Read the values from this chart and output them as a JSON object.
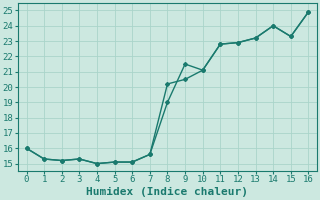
{
  "xlabel": "Humidex (Indice chaleur)",
  "ylabel": "",
  "xlim": [
    -0.5,
    16.5
  ],
  "ylim": [
    14.5,
    25.5
  ],
  "yticks": [
    15,
    16,
    17,
    18,
    19,
    20,
    21,
    22,
    23,
    24,
    25
  ],
  "xticks": [
    0,
    1,
    2,
    3,
    4,
    5,
    6,
    7,
    8,
    9,
    10,
    11,
    12,
    13,
    14,
    15,
    16
  ],
  "bg_color": "#cce8e0",
  "grid_color": "#aad4ca",
  "line_color": "#1a7a6e",
  "line1_x": [
    0,
    1,
    2,
    3,
    4,
    5,
    6,
    7,
    8,
    9,
    10,
    11,
    12,
    13,
    14,
    15,
    16
  ],
  "line1_y": [
    16.0,
    15.3,
    15.2,
    15.3,
    15.0,
    15.1,
    15.1,
    15.6,
    19.0,
    21.5,
    21.1,
    22.8,
    22.9,
    23.2,
    24.0,
    23.3,
    24.9
  ],
  "line2_x": [
    0,
    1,
    2,
    3,
    4,
    5,
    6,
    7,
    8,
    9,
    10,
    11,
    12,
    13,
    14,
    15,
    16
  ],
  "line2_y": [
    16.0,
    15.3,
    15.2,
    15.3,
    15.0,
    15.1,
    15.1,
    15.6,
    20.2,
    20.5,
    21.1,
    22.8,
    22.9,
    23.2,
    24.0,
    23.3,
    24.9
  ],
  "font_family": "monospace",
  "tick_fontsize": 6.5,
  "label_fontsize": 8.0
}
